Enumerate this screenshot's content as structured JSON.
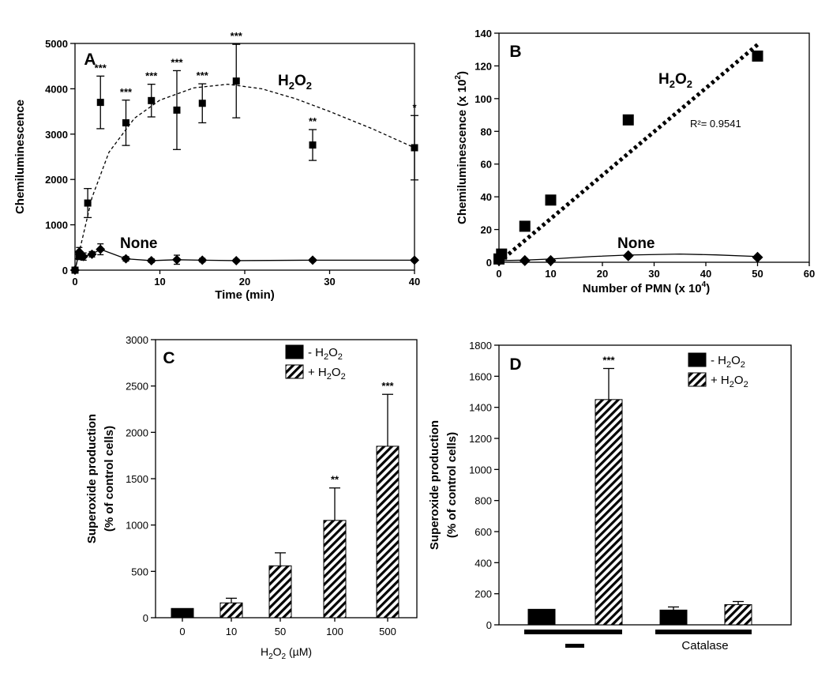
{
  "chart_data": [
    {
      "panel": "A",
      "type": "scatter",
      "panel_label": "A",
      "xlabel": "Time (min)",
      "ylabel": "Chemiluminescence",
      "xlim": [
        0,
        40
      ],
      "ylim": [
        0,
        5000
      ],
      "xticks": [
        0,
        10,
        20,
        30,
        40
      ],
      "yticks": [
        0,
        1000,
        2000,
        3000,
        4000,
        5000
      ],
      "series": [
        {
          "name": "H2O2",
          "marker": "square",
          "points": [
            {
              "x": 0,
              "y": 0,
              "err": 0,
              "sig": ""
            },
            {
              "x": 0.5,
              "y": 300,
              "err": 50,
              "sig": ""
            },
            {
              "x": 1.5,
              "y": 1480,
              "err": 320,
              "sig": ""
            },
            {
              "x": 3,
              "y": 3700,
              "err": 580,
              "sig": "***"
            },
            {
              "x": 6,
              "y": 3250,
              "err": 500,
              "sig": "***"
            },
            {
              "x": 9,
              "y": 3740,
              "err": 360,
              "sig": "***"
            },
            {
              "x": 12,
              "y": 3530,
              "err": 870,
              "sig": "***"
            },
            {
              "x": 15,
              "y": 3680,
              "err": 430,
              "sig": "***"
            },
            {
              "x": 19,
              "y": 4170,
              "err": 810,
              "sig": "***"
            },
            {
              "x": 28,
              "y": 2760,
              "err": 340,
              "sig": "**"
            },
            {
              "x": 40,
              "y": 2700,
              "err": 710,
              "sig": "*"
            }
          ],
          "fit_curve": [
            [
              0,
              0
            ],
            [
              2,
              1600
            ],
            [
              4,
              2600
            ],
            [
              7,
              3350
            ],
            [
              10,
              3750
            ],
            [
              14,
              4020
            ],
            [
              18,
              4100
            ],
            [
              22,
              4000
            ],
            [
              26,
              3780
            ],
            [
              30,
              3500
            ],
            [
              35,
              3120
            ],
            [
              40,
              2700
            ]
          ]
        },
        {
          "name": "None",
          "marker": "diamond",
          "points": [
            {
              "x": 0,
              "y": 0,
              "err": 0
            },
            {
              "x": 0.5,
              "y": 400,
              "err": 100
            },
            {
              "x": 1,
              "y": 300,
              "err": 80
            },
            {
              "x": 2,
              "y": 350,
              "err": 60
            },
            {
              "x": 3,
              "y": 460,
              "err": 120
            },
            {
              "x": 6,
              "y": 250,
              "err": 50
            },
            {
              "x": 9,
              "y": 210,
              "err": 40
            },
            {
              "x": 12,
              "y": 230,
              "err": 100
            },
            {
              "x": 15,
              "y": 220,
              "err": 40
            },
            {
              "x": 19,
              "y": 210,
              "err": 30
            },
            {
              "x": 28,
              "y": 220,
              "err": 30
            },
            {
              "x": 40,
              "y": 220,
              "err": 30
            }
          ]
        }
      ],
      "series_labels": {
        "h2o2_main": "H",
        "h2o2_sub": "2",
        "h2o2_o": "O",
        "none": "None"
      }
    },
    {
      "panel": "B",
      "type": "scatter",
      "panel_label": "B",
      "xlabel_main": "Number of PMN (x 10",
      "xlabel_sup": "4",
      "xlabel_end": ")",
      "ylabel_main": "Chemiluminescence (x 10",
      "ylabel_sup": "2",
      "ylabel_end": ")",
      "xlim": [
        0,
        60
      ],
      "ylim": [
        0,
        140
      ],
      "xticks": [
        0,
        10,
        20,
        30,
        40,
        50,
        60
      ],
      "yticks": [
        0,
        20,
        40,
        60,
        80,
        100,
        120,
        140
      ],
      "series": [
        {
          "name": "H2O2",
          "marker": "square",
          "points": [
            {
              "x": 0,
              "y": 2
            },
            {
              "x": 0.5,
              "y": 5
            },
            {
              "x": 5,
              "y": 22
            },
            {
              "x": 10,
              "y": 38
            },
            {
              "x": 25,
              "y": 87
            },
            {
              "x": 50,
              "y": 126
            }
          ],
          "fit_line": [
            [
              0,
              0
            ],
            [
              50,
              133
            ]
          ]
        },
        {
          "name": "None",
          "marker": "diamond",
          "points": [
            {
              "x": 0,
              "y": 1
            },
            {
              "x": 5,
              "y": 1
            },
            {
              "x": 10,
              "y": 1
            },
            {
              "x": 25,
              "y": 4
            },
            {
              "x": 50,
              "y": 3
            }
          ],
          "fit_curve": [
            [
              0,
              1
            ],
            [
              5,
              1.3
            ],
            [
              10,
              2
            ],
            [
              18,
              3.5
            ],
            [
              25,
              4.4
            ],
            [
              35,
              5
            ],
            [
              42,
              4.5
            ],
            [
              50,
              3.5
            ]
          ]
        }
      ],
      "r2_label": "R²= 0.9541",
      "series_labels": {
        "h2o2_main": "H",
        "h2o2_sub": "2",
        "h2o2_o": "O",
        "none": "None"
      }
    },
    {
      "panel": "C",
      "type": "bar",
      "panel_label": "C",
      "ylabel_line1": "Superoxide production",
      "ylabel_line2": "(% of control cells)",
      "xlabel_main": "H",
      "xlabel_sub": "2",
      "xlabel_o": "O",
      "xlabel_sub2": "2",
      "xlabel_end": " (µM)",
      "ylim": [
        0,
        3000
      ],
      "yticks": [
        0,
        500,
        1000,
        1500,
        2000,
        2500,
        3000
      ],
      "categories": [
        "0",
        "10",
        "50",
        "100",
        "500"
      ],
      "bars": [
        {
          "category": "0",
          "style": "solid",
          "value": 100,
          "err": 0,
          "sig": ""
        },
        {
          "category": "10",
          "style": "hatched",
          "value": 160,
          "err": 50,
          "sig": ""
        },
        {
          "category": "50",
          "style": "hatched",
          "value": 560,
          "err": 140,
          "sig": ""
        },
        {
          "category": "100",
          "style": "hatched",
          "value": 1050,
          "err": 350,
          "sig": "**"
        },
        {
          "category": "500",
          "style": "hatched",
          "value": 1850,
          "err": 560,
          "sig": "***"
        }
      ],
      "legend": [
        {
          "style": "solid",
          "sign": "- H",
          "sub": "2",
          "o": "O",
          "sub2": "2"
        },
        {
          "style": "hatched",
          "sign": "+ H",
          "sub": "2",
          "o": "O",
          "sub2": "2"
        }
      ]
    },
    {
      "panel": "D",
      "type": "bar",
      "panel_label": "D",
      "ylabel_line1": "Superoxide production",
      "ylabel_line2": "(% of control cells)",
      "ylim": [
        0,
        1800
      ],
      "yticks": [
        0,
        200,
        400,
        600,
        800,
        1000,
        1200,
        1400,
        1600,
        1800
      ],
      "groups": [
        {
          "label": "—",
          "bars": [
            {
              "style": "solid",
              "value": 100,
              "err": 0,
              "sig": ""
            },
            {
              "style": "hatched",
              "value": 1450,
              "err": 200,
              "sig": "***"
            }
          ]
        },
        {
          "label": "Catalase",
          "bars": [
            {
              "style": "solid",
              "value": 95,
              "err": 20,
              "sig": ""
            },
            {
              "style": "hatched",
              "value": 130,
              "err": 20,
              "sig": ""
            }
          ]
        }
      ],
      "legend": [
        {
          "style": "solid",
          "sign": "- H",
          "sub": "2",
          "o": "O",
          "sub2": "2"
        },
        {
          "style": "hatched",
          "sign": "+ H",
          "sub": "2",
          "o": "O",
          "sub2": "2"
        }
      ]
    }
  ]
}
